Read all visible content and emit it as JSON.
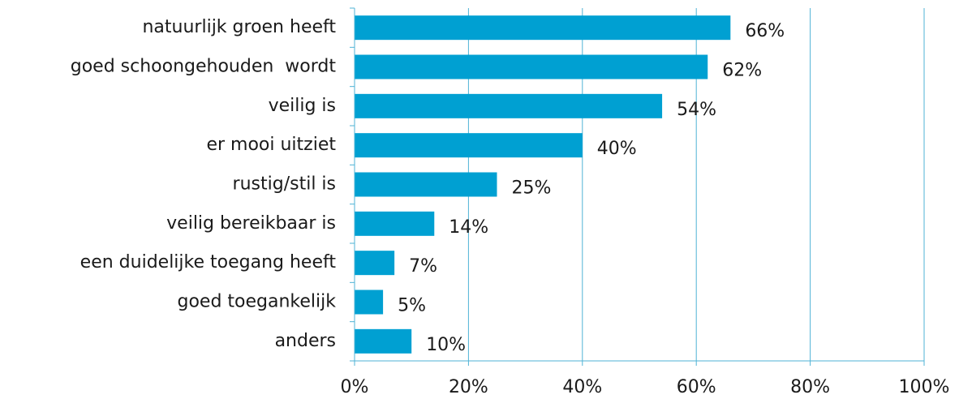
{
  "chart_data": {
    "type": "bar",
    "orientation": "horizontal",
    "categories": [
      "natuurlijk groen heeft",
      "goed schoongehouden  wordt",
      "veilig is",
      "er mooi uitziet",
      "rustig/stil is",
      "veilig bereikbaar is",
      "een duidelijke toegang heeft",
      "goed toegankelijk",
      "anders"
    ],
    "values": [
      66,
      62,
      54,
      40,
      25,
      14,
      7,
      5,
      10
    ],
    "value_labels": [
      "66%",
      "62%",
      "54%",
      "40%",
      "25%",
      "14%",
      "7%",
      "5%",
      "10%"
    ],
    "color": "#00a0d2",
    "xlim": [
      0,
      100
    ],
    "xticks": [
      {
        "value": 0,
        "label": "0%"
      },
      {
        "value": 20,
        "label": "20%"
      },
      {
        "value": 40,
        "label": "40%"
      },
      {
        "value": 60,
        "label": "60%"
      },
      {
        "value": 80,
        "label": "80%"
      },
      {
        "value": 100,
        "label": "100%"
      }
    ],
    "grid": true
  }
}
